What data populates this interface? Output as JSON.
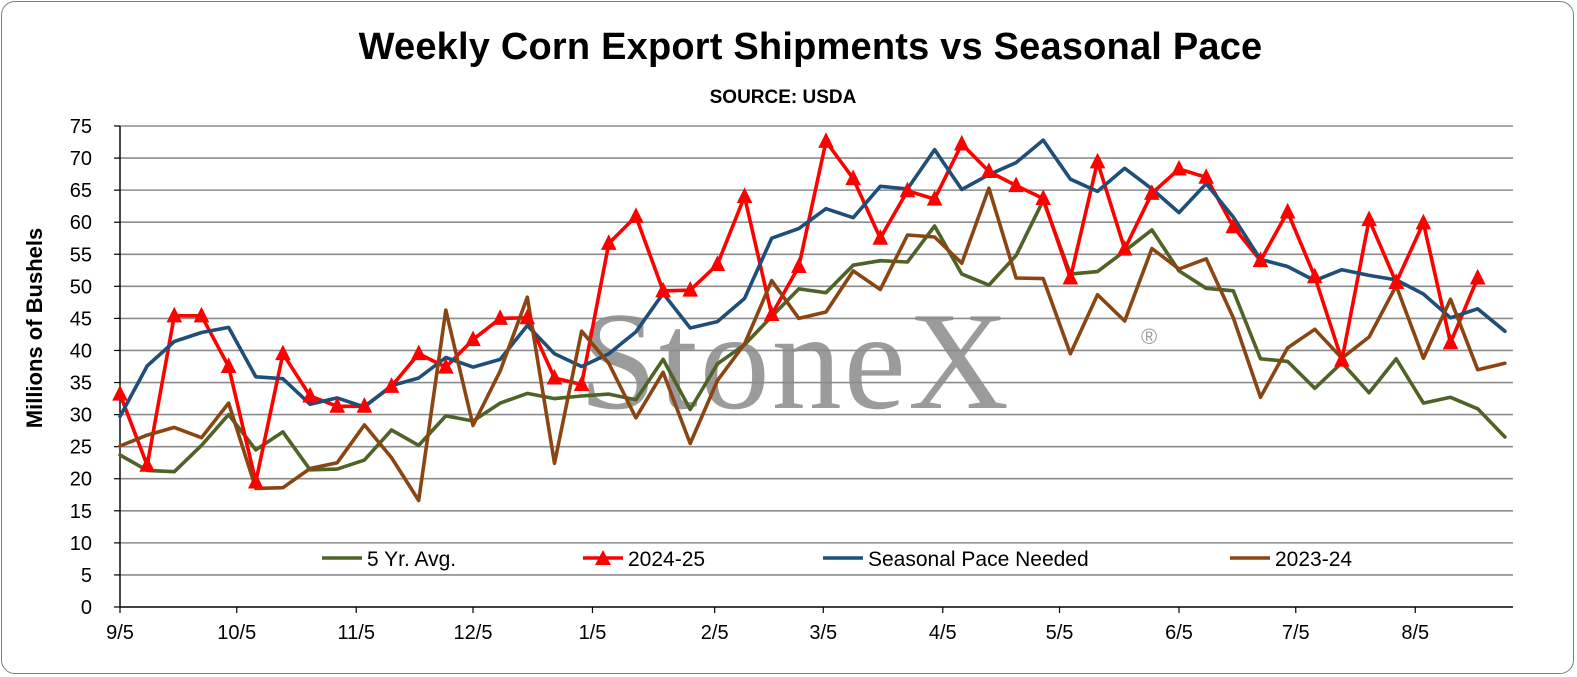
{
  "chart_data": {
    "type": "line",
    "title": "Weekly Corn Export Shipments vs Seasonal Pace",
    "subtitle": "SOURCE: USDA",
    "ylabel": "Millions of Bushels",
    "xlabel": "",
    "ylim": [
      0,
      75
    ],
    "yticks": [
      0,
      5,
      10,
      15,
      20,
      25,
      30,
      35,
      40,
      45,
      50,
      55,
      60,
      65,
      70,
      75
    ],
    "grid": "horizontal",
    "x_tick_labels": [
      {
        "label": "9/5",
        "week": 0
      },
      {
        "label": "10/5",
        "week": 4.3
      },
      {
        "label": "11/5",
        "week": 8.7
      },
      {
        "label": "12/5",
        "week": 13
      },
      {
        "label": "1/5",
        "week": 17.4
      },
      {
        "label": "2/5",
        "week": 21.9
      },
      {
        "label": "3/5",
        "week": 25.9
      },
      {
        "label": "4/5",
        "week": 30.3
      },
      {
        "label": "5/5",
        "week": 34.6
      },
      {
        "label": "6/5",
        "week": 39.0
      },
      {
        "label": "7/5",
        "week": 43.3
      },
      {
        "label": "8/5",
        "week": 47.7
      }
    ],
    "x_max_week": 51.3,
    "legend_position": "bottom-inside",
    "watermark": "StoneX",
    "watermark_mark": "®",
    "series": [
      {
        "name": "5 Yr. Avg.",
        "color": "#4f6228",
        "marker": "none",
        "values": [
          23.7,
          21.3,
          21.1,
          25.2,
          30.0,
          24.5,
          27.3,
          21.4,
          21.5,
          22.9,
          27.6,
          25.2,
          29.8,
          29.0,
          31.8,
          33.3,
          32.5,
          32.9,
          33.2,
          32.3,
          38.6,
          30.8,
          37.9,
          40.9,
          45.3,
          49.6,
          49.0,
          53.3,
          54.0,
          53.8,
          59.4,
          51.9,
          50.2,
          54.8,
          63.4,
          51.9,
          52.3,
          55.5,
          58.8,
          52.4,
          49.7,
          49.3,
          38.7,
          38.3,
          34.1,
          38.1,
          33.4,
          38.7,
          31.8,
          32.7,
          30.9,
          26.5
        ]
      },
      {
        "name": "2024-25",
        "color": "#ff0000",
        "marker": "triangle",
        "values": [
          33.2,
          22.1,
          45.4,
          45.4,
          37.5,
          19.5,
          39.5,
          32.9,
          31.3,
          31.3,
          34.4,
          39.5,
          37.4,
          41.7,
          45.0,
          45.1,
          35.7,
          34.7,
          56.7,
          60.9,
          49.3,
          49.4,
          53.4,
          64.0,
          45.6,
          53.1,
          72.6,
          66.8,
          57.5,
          64.9,
          63.6,
          72.2,
          67.9,
          65.7,
          63.7,
          51.3,
          69.4,
          55.8,
          64.5,
          68.3,
          67.0,
          59.3,
          54.0,
          61.6,
          51.5,
          38.5,
          60.4,
          50.6,
          59.9,
          41.2,
          51.3
        ]
      },
      {
        "name": "Seasonal Pace Needed",
        "color": "#1f4e79",
        "marker": "none",
        "values": [
          29.7,
          37.6,
          41.4,
          42.8,
          43.6,
          35.9,
          35.6,
          31.6,
          32.6,
          31.2,
          34.5,
          35.7,
          38.9,
          37.4,
          38.6,
          43.9,
          39.5,
          37.5,
          39.5,
          42.9,
          48.9,
          43.5,
          44.5,
          48.1,
          57.5,
          59.0,
          62.1,
          60.7,
          65.6,
          65.2,
          71.3,
          65.1,
          67.4,
          69.3,
          72.8,
          66.7,
          64.8,
          68.4,
          65.2,
          61.5,
          66.0,
          60.8,
          54.2,
          53.1,
          50.9,
          52.6,
          51.7,
          51.0,
          48.8,
          45.1,
          46.5,
          43.0
        ]
      },
      {
        "name": "2023-24",
        "color": "#8b4513",
        "marker": "none",
        "values": [
          25.1,
          26.8,
          28.0,
          26.4,
          31.8,
          18.5,
          18.6,
          21.6,
          22.5,
          28.4,
          23.3,
          16.6,
          46.3,
          28.3,
          36.8,
          48.3,
          22.4,
          43.0,
          38.0,
          29.5,
          36.6,
          25.5,
          35.3,
          41.0,
          50.9,
          45.0,
          46.0,
          52.4,
          49.5,
          58.0,
          57.7,
          53.6,
          65.3,
          51.3,
          51.2,
          39.5,
          48.7,
          44.6,
          55.9,
          52.7,
          54.3,
          45.1,
          32.7,
          40.4,
          43.3,
          38.8,
          42.1,
          50.1,
          38.8,
          48.0,
          37.0,
          38.0
        ]
      }
    ]
  }
}
